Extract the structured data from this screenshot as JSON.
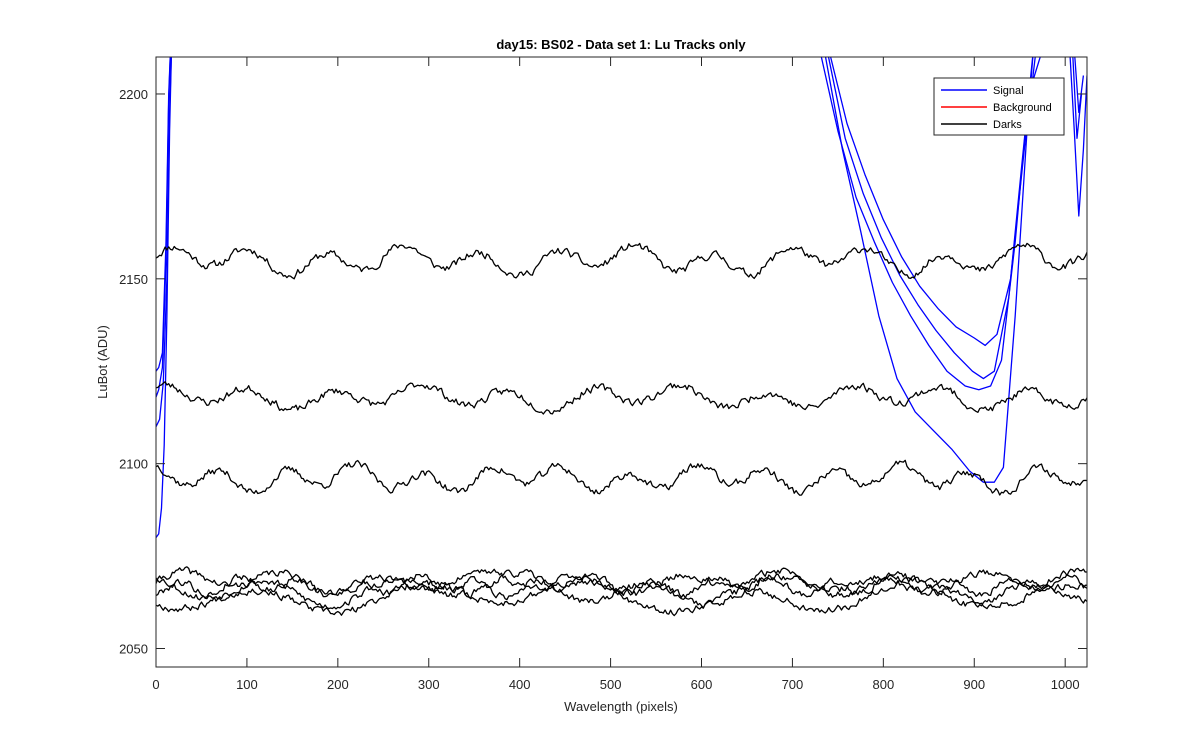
{
  "chart_data": {
    "type": "line",
    "title": "day15: BS02 - Data set 1: Lu Tracks only",
    "xlabel": "Wavelength (pixels)",
    "ylabel": "LuBot (ADU)",
    "xlim": [
      0,
      1024
    ],
    "ylim": [
      2045,
      2210
    ],
    "xticks": [
      0,
      100,
      200,
      300,
      400,
      500,
      600,
      700,
      800,
      900,
      1000
    ],
    "yticks": [
      2050,
      2100,
      2150,
      2200
    ],
    "grid": false,
    "legend_position": "top-right",
    "colors": {
      "Signal": "#0000ff",
      "Background": "#ff0000",
      "Darks": "#000000"
    },
    "legend": [
      "Signal",
      "Background",
      "Darks"
    ],
    "series": [
      {
        "name": "Signal",
        "group": "Signal",
        "points": [
          [
            0,
            2080
          ],
          [
            3,
            2081
          ],
          [
            6,
            2088
          ],
          [
            9,
            2105
          ],
          [
            12,
            2140
          ],
          [
            15,
            2190
          ],
          [
            17,
            2212
          ],
          [
            730,
            2212
          ],
          [
            750,
            2190
          ],
          [
            770,
            2172
          ],
          [
            790,
            2160
          ],
          [
            810,
            2149
          ],
          [
            830,
            2140
          ],
          [
            850,
            2132
          ],
          [
            870,
            2125
          ],
          [
            890,
            2121
          ],
          [
            905,
            2120
          ],
          [
            918,
            2121
          ],
          [
            930,
            2128
          ],
          [
            945,
            2160
          ],
          [
            960,
            2200
          ],
          [
            975,
            2212
          ],
          [
            1005,
            2212
          ],
          [
            1010,
            2190
          ],
          [
            1015,
            2167
          ],
          [
            1020,
            2185
          ],
          [
            1024,
            2205
          ]
        ]
      },
      {
        "name": "Signal",
        "group": "Signal",
        "points": [
          [
            0,
            2110
          ],
          [
            4,
            2112
          ],
          [
            8,
            2122
          ],
          [
            12,
            2150
          ],
          [
            15,
            2195
          ],
          [
            17,
            2212
          ],
          [
            735,
            2212
          ],
          [
            755,
            2185
          ],
          [
            775,
            2163
          ],
          [
            795,
            2140
          ],
          [
            815,
            2123
          ],
          [
            835,
            2114
          ],
          [
            855,
            2109
          ],
          [
            875,
            2104
          ],
          [
            895,
            2098
          ],
          [
            910,
            2095
          ],
          [
            922,
            2095
          ],
          [
            932,
            2099
          ],
          [
            945,
            2140
          ],
          [
            958,
            2190
          ],
          [
            965,
            2212
          ]
        ]
      },
      {
        "name": "Signal",
        "group": "Signal",
        "points": [
          [
            0,
            2125
          ],
          [
            3,
            2126
          ],
          [
            7,
            2130
          ],
          [
            11,
            2160
          ],
          [
            14,
            2200
          ],
          [
            16,
            2212
          ],
          [
            740,
            2212
          ],
          [
            760,
            2192
          ],
          [
            780,
            2178
          ],
          [
            800,
            2166
          ],
          [
            820,
            2156
          ],
          [
            840,
            2148
          ],
          [
            860,
            2142
          ],
          [
            880,
            2137
          ],
          [
            900,
            2134
          ],
          [
            912,
            2132
          ],
          [
            925,
            2135
          ],
          [
            940,
            2150
          ],
          [
            955,
            2185
          ],
          [
            968,
            2212
          ],
          [
            1010,
            2212
          ],
          [
            1015,
            2195
          ],
          [
            1020,
            2205
          ]
        ]
      },
      {
        "name": "Signal",
        "group": "Signal",
        "points": [
          [
            0,
            2118
          ],
          [
            3,
            2120
          ],
          [
            7,
            2126
          ],
          [
            11,
            2155
          ],
          [
            14,
            2198
          ],
          [
            16,
            2212
          ],
          [
            738,
            2212
          ],
          [
            758,
            2188
          ],
          [
            778,
            2173
          ],
          [
            798,
            2161
          ],
          [
            818,
            2151
          ],
          [
            838,
            2143
          ],
          [
            858,
            2136
          ],
          [
            878,
            2130
          ],
          [
            898,
            2125
          ],
          [
            910,
            2123
          ],
          [
            922,
            2125
          ],
          [
            938,
            2145
          ],
          [
            952,
            2180
          ],
          [
            965,
            2212
          ],
          [
            1008,
            2212
          ],
          [
            1013,
            2188
          ],
          [
            1018,
            2200
          ]
        ]
      },
      {
        "name": "Darks",
        "group": "Darks",
        "base": 2155,
        "amp": 2.8,
        "period": 85,
        "phase": 0.3,
        "noise": 1.3,
        "seed": 11
      },
      {
        "name": "Darks",
        "group": "Darks",
        "base": 2118,
        "amp": 2.4,
        "period": 95,
        "phase": 1.1,
        "noise": 1.3,
        "seed": 23
      },
      {
        "name": "Darks",
        "group": "Darks",
        "base": 2096,
        "amp": 2.6,
        "period": 75,
        "phase": 2.0,
        "noise": 1.3,
        "seed": 37
      },
      {
        "name": "Darks",
        "group": "Darks",
        "base": 2068,
        "amp": 2.2,
        "period": 110,
        "phase": 0.0,
        "noise": 1.2,
        "seed": 41
      },
      {
        "name": "Darks",
        "group": "Darks",
        "base": 2066,
        "amp": 3.0,
        "period": 140,
        "phase": 2.4,
        "noise": 1.2,
        "seed": 53
      },
      {
        "name": "Darks",
        "group": "Darks",
        "base": 2064,
        "amp": 3.2,
        "period": 180,
        "phase": 4.0,
        "noise": 1.2,
        "seed": 67
      },
      {
        "name": "Darks",
        "group": "Darks",
        "base": 2067,
        "amp": 2.0,
        "period": 65,
        "phase": 5.2,
        "noise": 1.2,
        "seed": 79
      }
    ]
  }
}
